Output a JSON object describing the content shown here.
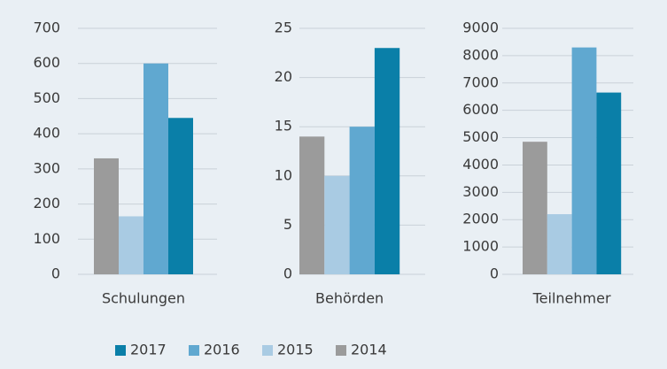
{
  "chart_data": [
    {
      "type": "bar",
      "categories": [
        "Schulungen"
      ],
      "ylim": [
        0,
        700
      ],
      "yticks": [
        0,
        100,
        200,
        300,
        400,
        500,
        600,
        700
      ],
      "grid": true,
      "series": [
        {
          "name": "2014",
          "color": "#9b9b9b",
          "values": [
            330
          ]
        },
        {
          "name": "2015",
          "color": "#a9cbe3",
          "values": [
            165
          ]
        },
        {
          "name": "2016",
          "color": "#60a8d0",
          "values": [
            600
          ]
        },
        {
          "name": "2017",
          "color": "#0a7fa8",
          "values": [
            445
          ]
        }
      ]
    },
    {
      "type": "bar",
      "categories": [
        "Behörden"
      ],
      "ylim": [
        0,
        25
      ],
      "yticks": [
        0,
        5,
        10,
        15,
        20,
        25
      ],
      "grid": true,
      "series": [
        {
          "name": "2014",
          "color": "#9b9b9b",
          "values": [
            14
          ]
        },
        {
          "name": "2015",
          "color": "#a9cbe3",
          "values": [
            10
          ]
        },
        {
          "name": "2016",
          "color": "#60a8d0",
          "values": [
            15
          ]
        },
        {
          "name": "2017",
          "color": "#0a7fa8",
          "values": [
            23
          ]
        }
      ]
    },
    {
      "type": "bar",
      "categories": [
        "Teilnehmer"
      ],
      "ylim": [
        0,
        9000
      ],
      "yticks": [
        0,
        1000,
        2000,
        3000,
        4000,
        5000,
        6000,
        7000,
        8000,
        9000
      ],
      "grid": true,
      "series": [
        {
          "name": "2014",
          "color": "#9b9b9b",
          "values": [
            4850
          ]
        },
        {
          "name": "2015",
          "color": "#a9cbe3",
          "values": [
            2200
          ]
        },
        {
          "name": "2016",
          "color": "#60a8d0",
          "values": [
            8300
          ]
        },
        {
          "name": "2017",
          "color": "#0a7fa8",
          "values": [
            6650
          ]
        }
      ]
    }
  ],
  "legend": {
    "position": "bottom",
    "order": "reverse"
  }
}
